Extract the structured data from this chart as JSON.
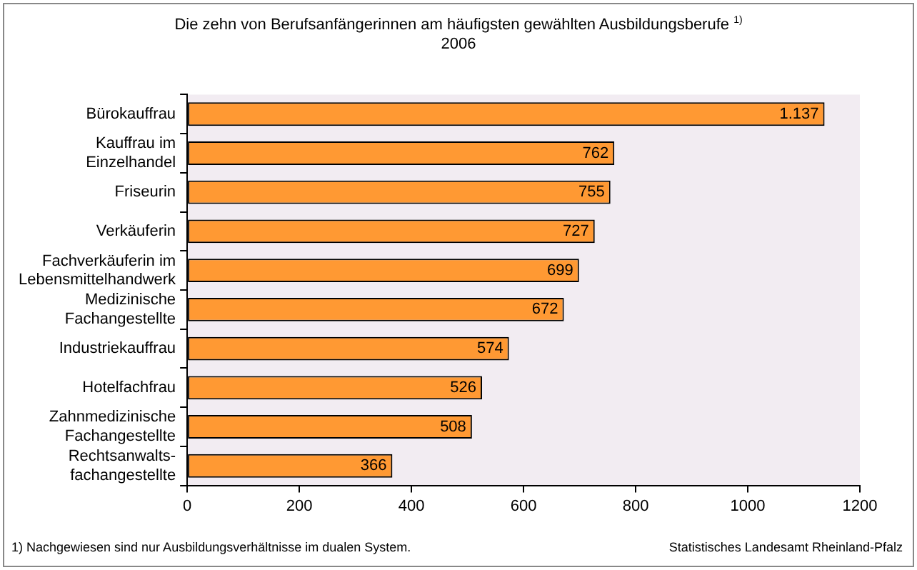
{
  "chart_data": {
    "type": "bar",
    "orientation": "horizontal",
    "title": "Die zehn von Berufsanfängerinnen am häufigsten gewählten Ausbildungsberufe $^{1)}$",
    "subtitle": "2006",
    "categories": [
      "Bürokauffrau",
      "Kauffrau im Einzelhandel",
      "Friseurin",
      "Verkäuferin",
      "Fachverkäuferin im Lebensmittelhandwerk",
      "Medizinische Fachangestellte",
      "Industriekauffrau",
      "Hotelfachfrau",
      "Zahnmedizinische Fachangestellte",
      "Rechtsanwalts-fachangestellte"
    ],
    "values": [
      1137,
      762,
      755,
      727,
      699,
      672,
      574,
      526,
      508,
      366
    ],
    "value_labels": [
      "1.137",
      "762",
      "755",
      "727",
      "699",
      "672",
      "574",
      "526",
      "508",
      "366"
    ],
    "color": "#ff9933",
    "xlim": [
      0,
      1200
    ],
    "xticks": [
      0,
      200,
      400,
      600,
      800,
      1000,
      1200
    ],
    "grid": false,
    "legend": false,
    "annotations": [
      "1) Nachgewiesen sind nur Ausbildungsverhältnisse im dualen System.",
      "Statistisches Landesamt Rheinland-Pfalz"
    ]
  }
}
